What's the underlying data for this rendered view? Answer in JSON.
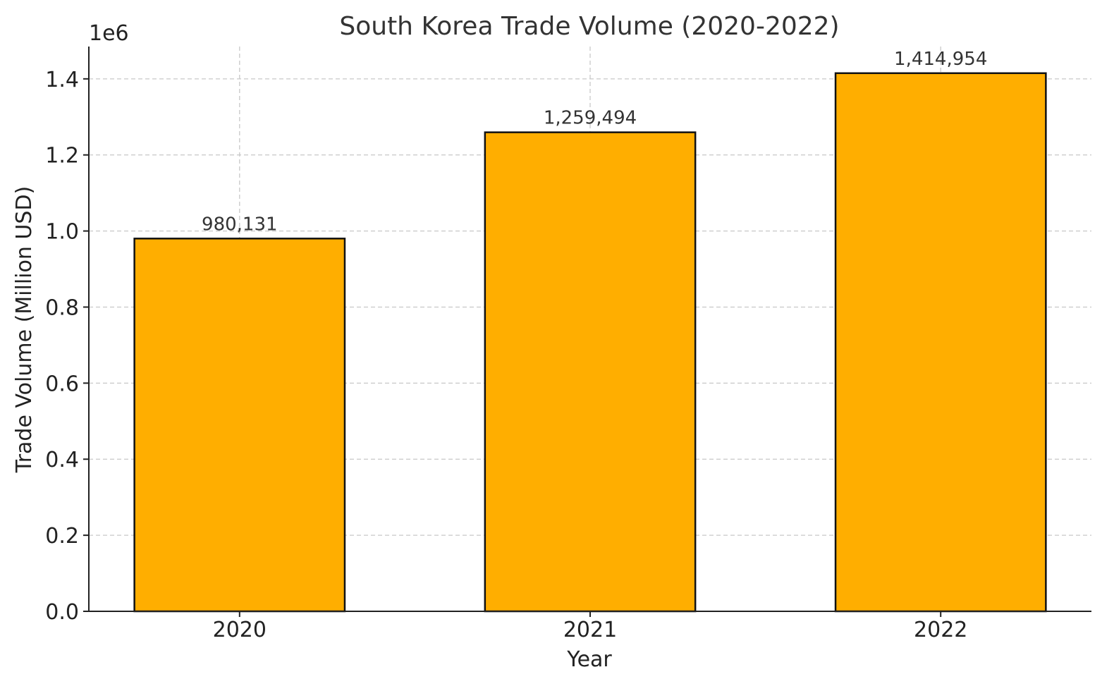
{
  "chart_data": {
    "type": "bar",
    "title": "South Korea Trade Volume (2020-2022)",
    "xlabel": "Year",
    "ylabel": "Trade Volume (Million USD)",
    "y_offset_label": "1e6",
    "categories": [
      "2020",
      "2021",
      "2022"
    ],
    "values": [
      980131,
      1259494,
      1414954
    ],
    "value_labels": [
      "980,131",
      "1,259,494",
      "1,414,954"
    ],
    "ylim": [
      0,
      1485000
    ],
    "y_ticks": [
      0,
      200000,
      400000,
      600000,
      800000,
      1000000,
      1200000,
      1400000
    ],
    "y_tick_labels": [
      "0.0",
      "0.2",
      "0.4",
      "0.6",
      "0.8",
      "1.0",
      "1.2",
      "1.4"
    ],
    "grid": true,
    "colors": {
      "bar": "#FFAE00",
      "bar_edge": "#111111"
    }
  }
}
